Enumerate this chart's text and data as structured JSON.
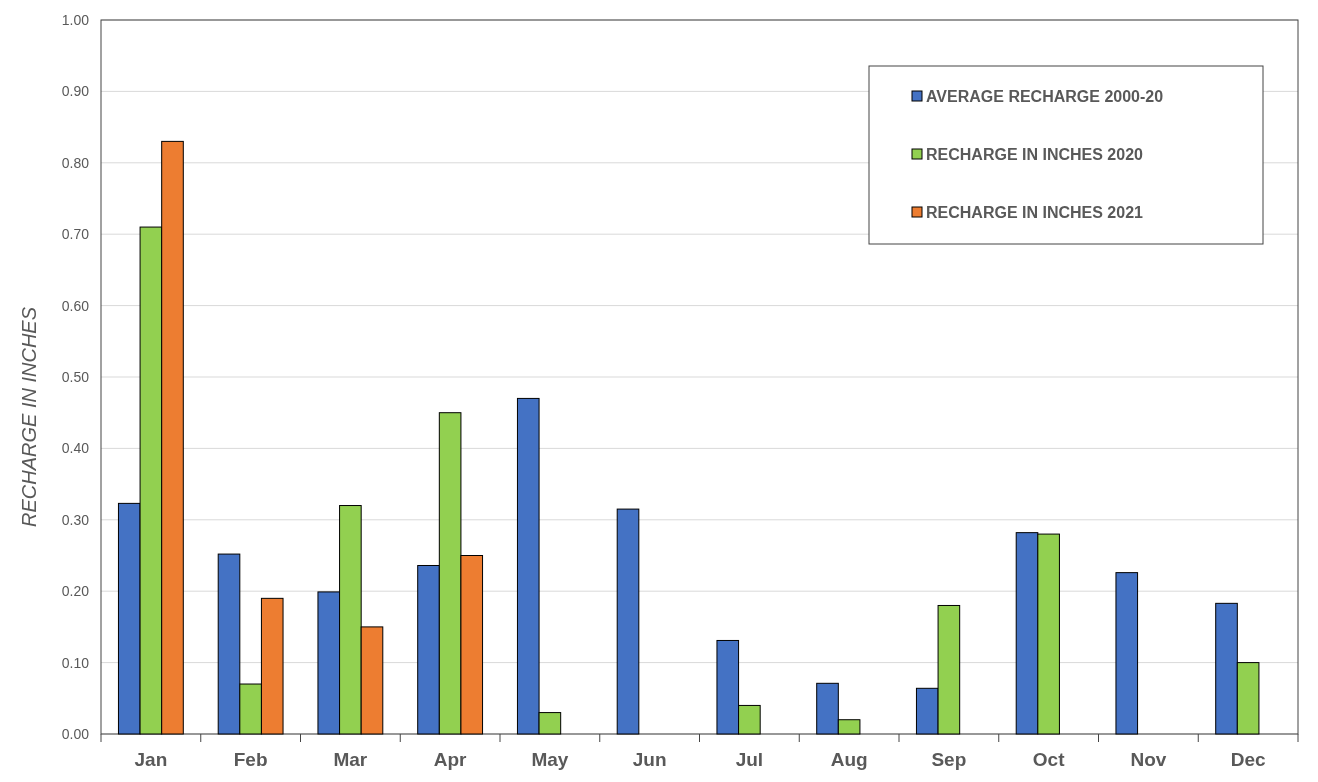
{
  "chart_data": {
    "type": "bar",
    "ylabel": "RECHARGE IN INCHES",
    "categories": [
      "Jan",
      "Feb",
      "Mar",
      "Apr",
      "May",
      "Jun",
      "Jul",
      "Aug",
      "Sep",
      "Oct",
      "Nov",
      "Dec"
    ],
    "series": [
      {
        "name": "AVERAGE RECHARGE 2000-20",
        "color": "#4472c4",
        "values": [
          0.323,
          0.252,
          0.199,
          0.236,
          0.47,
          0.315,
          0.131,
          0.071,
          0.064,
          0.282,
          0.226,
          0.183
        ]
      },
      {
        "name": "RECHARGE IN INCHES 2020",
        "color": "#92d050",
        "values": [
          0.71,
          0.07,
          0.32,
          0.45,
          0.03,
          null,
          0.04,
          0.02,
          0.18,
          0.28,
          null,
          0.1
        ]
      },
      {
        "name": "RECHARGE IN INCHES 2021",
        "color": "#ed7d31",
        "values": [
          0.83,
          0.19,
          0.15,
          0.25,
          null,
          null,
          null,
          null,
          null,
          null,
          null,
          null
        ]
      }
    ],
    "ylim": [
      0,
      1
    ],
    "yticks": [
      {
        "value": 0,
        "label": "0.00"
      },
      {
        "value": 0.1,
        "label": "0.10"
      },
      {
        "value": 0.2,
        "label": "0.20"
      },
      {
        "value": 0.3,
        "label": "0.30"
      },
      {
        "value": 0.4,
        "label": "0.40"
      },
      {
        "value": 0.5,
        "label": "0.50"
      },
      {
        "value": 0.6,
        "label": "0.60"
      },
      {
        "value": 0.7,
        "label": "0.70"
      },
      {
        "value": 0.8,
        "label": "0.80"
      },
      {
        "value": 0.9,
        "label": "0.90"
      },
      {
        "value": 1,
        "label": "1.00"
      }
    ],
    "grid": "y",
    "legend": "top right"
  }
}
